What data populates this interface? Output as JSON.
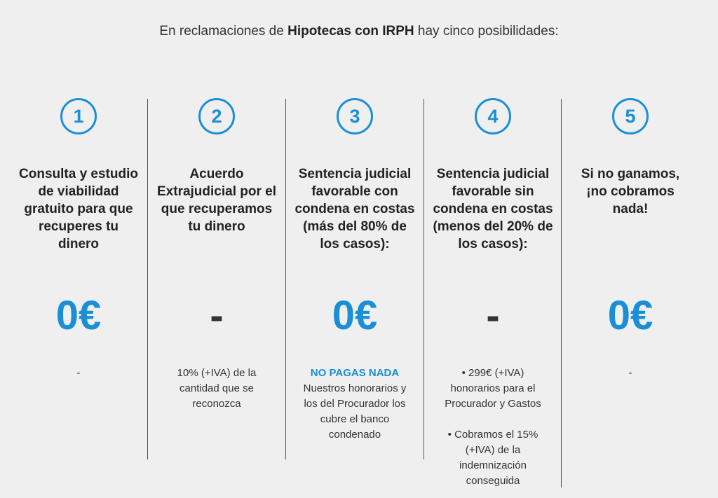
{
  "intro": {
    "prefix": "En reclamaciones de ",
    "bold": "Hipotecas con IRPH",
    "suffix": " hay cinco posibilidades:"
  },
  "options": [
    {
      "number": "1",
      "title": "Consulta y estudio de viabilidad gratuito para que recuperes tu dinero",
      "price": "0€",
      "desc_lines": [
        "-"
      ]
    },
    {
      "number": "2",
      "title": "Acuerdo Extrajudicial por el que recuperamos tu dinero",
      "price": "-",
      "desc_lines": [
        "10% (+IVA) de la cantidad que se reconozca"
      ]
    },
    {
      "number": "3",
      "title": "Sentencia judicial favorable con condena en costas (más del 80% de los casos):",
      "price": "0€",
      "highlight": "NO PAGAS NADA",
      "desc_lines": [
        "Nuestros honorarios y los del Procurador los cubre el banco condenado"
      ]
    },
    {
      "number": "4",
      "title": "Sentencia judicial favorable sin condena en costas (menos del 20% de los casos):",
      "price": "-",
      "desc_lines": [
        "• 299€ (+IVA) honorarios para el Procurador y Gastos",
        "• Cobramos el 15% (+IVA) de la indemnización conseguida"
      ]
    },
    {
      "number": "5",
      "title": "Si no ganamos, ¡no cobramos nada!",
      "price": "0€",
      "desc_lines": [
        "-"
      ]
    }
  ],
  "colors": {
    "accent": "#1a8fd6",
    "background": "#efefef"
  }
}
